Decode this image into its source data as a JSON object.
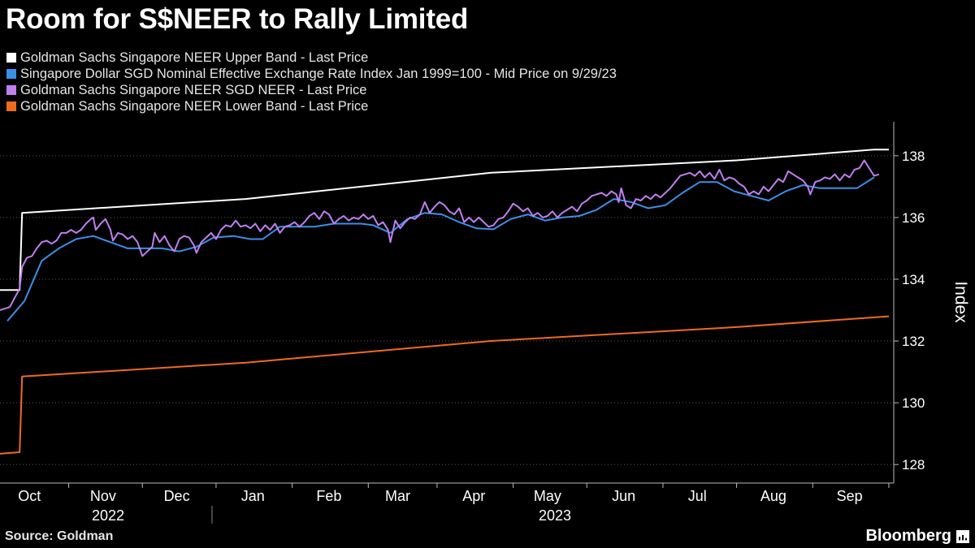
{
  "chart_data": {
    "type": "line",
    "title": "Room for S$NEER to Rally Limited",
    "ylabel": "Index",
    "ylim": [
      127.4,
      139.1
    ],
    "yticks": [
      128,
      130,
      132,
      134,
      136,
      138
    ],
    "xlim": [
      0,
      364
    ],
    "x_months": [
      {
        "label": "Oct",
        "x": 12
      },
      {
        "label": "Nov",
        "x": 42
      },
      {
        "label": "Dec",
        "x": 72
      },
      {
        "label": "Jan",
        "x": 103
      },
      {
        "label": "Feb",
        "x": 134
      },
      {
        "label": "Mar",
        "x": 162
      },
      {
        "label": "Apr",
        "x": 193
      },
      {
        "label": "May",
        "x": 223
      },
      {
        "label": "Jun",
        "x": 254
      },
      {
        "label": "Jul",
        "x": 284
      },
      {
        "label": "Aug",
        "x": 315
      },
      {
        "label": "Sep",
        "x": 346
      }
    ],
    "month_boundaries": [
      28,
      58,
      88,
      119,
      150,
      178,
      209,
      239,
      270,
      300,
      331,
      362
    ],
    "years": [
      {
        "label": "2022",
        "x_start": 0,
        "x_end": 88
      },
      {
        "label": "2023",
        "x_start": 88,
        "x_end": 364
      }
    ],
    "grid": "horizontal dotted",
    "series": [
      {
        "name": "Goldman Sachs Singapore NEER Upper Band - Last Price",
        "color": "#ffffff",
        "points": [
          [
            0,
            133.65
          ],
          [
            8,
            133.65
          ],
          [
            9,
            136.15
          ],
          [
            100,
            136.6
          ],
          [
            200,
            137.45
          ],
          [
            300,
            137.85
          ],
          [
            356,
            138.2
          ],
          [
            362,
            138.2
          ]
        ]
      },
      {
        "name": "Singapore Dollar SGD Nominal Effective Exchange Rate Index Jan 1999=100 - Mid Price on 9/29/23",
        "color": "#3b8fe8",
        "points": [
          [
            3,
            132.65
          ],
          [
            10,
            133.3
          ],
          [
            17,
            134.6
          ],
          [
            24,
            135.0
          ],
          [
            31,
            135.3
          ],
          [
            38,
            135.4
          ],
          [
            45,
            135.2
          ],
          [
            52,
            135.0
          ],
          [
            59,
            135.0
          ],
          [
            66,
            135.0
          ],
          [
            73,
            134.9
          ],
          [
            80,
            135.05
          ],
          [
            87,
            135.35
          ],
          [
            95,
            135.4
          ],
          [
            102,
            135.3
          ],
          [
            107,
            135.3
          ],
          [
            114,
            135.7
          ],
          [
            128,
            135.7
          ],
          [
            136,
            135.8
          ],
          [
            147,
            135.8
          ],
          [
            152,
            135.75
          ],
          [
            159,
            135.5
          ],
          [
            166,
            135.95
          ],
          [
            173,
            136.15
          ],
          [
            180,
            136.1
          ],
          [
            187,
            135.85
          ],
          [
            194,
            135.65
          ],
          [
            201,
            135.62
          ],
          [
            208,
            135.95
          ],
          [
            215,
            136.1
          ],
          [
            222,
            135.9
          ],
          [
            229,
            136.0
          ],
          [
            236,
            136.05
          ],
          [
            243,
            136.25
          ],
          [
            250,
            136.6
          ],
          [
            257,
            136.5
          ],
          [
            264,
            136.3
          ],
          [
            271,
            136.4
          ],
          [
            278,
            136.8
          ],
          [
            285,
            137.15
          ],
          [
            292,
            137.15
          ],
          [
            299,
            136.85
          ],
          [
            306,
            136.7
          ],
          [
            313,
            136.55
          ],
          [
            320,
            136.85
          ],
          [
            327,
            137.05
          ],
          [
            334,
            136.95
          ],
          [
            349,
            136.95
          ],
          [
            356,
            137.3
          ]
        ]
      },
      {
        "name": "Goldman Sachs Singapore NEER SGD NEER - Last Price",
        "color": "#c07ff0",
        "points": [
          [
            0,
            133.0
          ],
          [
            4,
            133.1
          ],
          [
            6,
            133.4
          ],
          [
            8,
            133.7
          ],
          [
            9,
            134.4
          ],
          [
            11,
            134.7
          ],
          [
            13,
            134.75
          ],
          [
            15,
            135.0
          ],
          [
            17,
            135.2
          ],
          [
            19,
            135.25
          ],
          [
            21,
            135.15
          ],
          [
            23,
            135.25
          ],
          [
            25,
            135.5
          ],
          [
            27,
            135.5
          ],
          [
            29,
            135.6
          ],
          [
            31,
            135.5
          ],
          [
            33,
            135.6
          ],
          [
            35,
            135.8
          ],
          [
            37,
            135.95
          ],
          [
            38,
            136.0
          ],
          [
            39,
            135.6
          ],
          [
            41,
            135.8
          ],
          [
            43,
            135.95
          ],
          [
            45,
            135.6
          ],
          [
            46,
            135.25
          ],
          [
            48,
            135.5
          ],
          [
            50,
            135.45
          ],
          [
            52,
            135.3
          ],
          [
            54,
            135.4
          ],
          [
            56,
            135.2
          ],
          [
            58,
            134.75
          ],
          [
            60,
            134.9
          ],
          [
            62,
            135.05
          ],
          [
            63,
            135.5
          ],
          [
            65,
            135.2
          ],
          [
            67,
            135.4
          ],
          [
            69,
            135.1
          ],
          [
            71,
            134.9
          ],
          [
            73,
            135.3
          ],
          [
            75,
            135.4
          ],
          [
            77,
            135.35
          ],
          [
            79,
            135.1
          ],
          [
            80,
            134.85
          ],
          [
            82,
            135.2
          ],
          [
            84,
            135.35
          ],
          [
            86,
            135.5
          ],
          [
            88,
            135.3
          ],
          [
            90,
            135.6
          ],
          [
            92,
            135.75
          ],
          [
            94,
            135.7
          ],
          [
            96,
            135.9
          ],
          [
            98,
            135.7
          ],
          [
            100,
            135.75
          ],
          [
            102,
            135.65
          ],
          [
            104,
            135.8
          ],
          [
            106,
            135.55
          ],
          [
            108,
            135.75
          ],
          [
            110,
            135.6
          ],
          [
            112,
            135.8
          ],
          [
            114,
            135.5
          ],
          [
            116,
            135.7
          ],
          [
            118,
            135.75
          ],
          [
            120,
            135.85
          ],
          [
            122,
            135.7
          ],
          [
            124,
            135.85
          ],
          [
            126,
            136.05
          ],
          [
            128,
            136.15
          ],
          [
            130,
            135.95
          ],
          [
            132,
            136.2
          ],
          [
            134,
            136.1
          ],
          [
            136,
            135.8
          ],
          [
            138,
            135.95
          ],
          [
            140,
            136.05
          ],
          [
            142,
            135.9
          ],
          [
            144,
            136.0
          ],
          [
            146,
            135.95
          ],
          [
            148,
            136.1
          ],
          [
            150,
            135.95
          ],
          [
            152,
            136.05
          ],
          [
            154,
            135.75
          ],
          [
            156,
            135.85
          ],
          [
            158,
            135.6
          ],
          [
            159,
            135.2
          ],
          [
            161,
            135.9
          ],
          [
            163,
            135.65
          ],
          [
            165,
            135.85
          ],
          [
            167,
            136.0
          ],
          [
            169,
            135.95
          ],
          [
            171,
            136.1
          ],
          [
            173,
            136.5
          ],
          [
            175,
            136.15
          ],
          [
            177,
            136.35
          ],
          [
            179,
            136.5
          ],
          [
            181,
            136.4
          ],
          [
            183,
            136.2
          ],
          [
            185,
            136.1
          ],
          [
            187,
            136.3
          ],
          [
            189,
            135.85
          ],
          [
            191,
            136.0
          ],
          [
            193,
            135.85
          ],
          [
            195,
            136.0
          ],
          [
            197,
            135.85
          ],
          [
            199,
            135.7
          ],
          [
            201,
            135.75
          ],
          [
            203,
            135.95
          ],
          [
            205,
            136.0
          ],
          [
            207,
            136.2
          ],
          [
            209,
            136.45
          ],
          [
            211,
            136.35
          ],
          [
            213,
            136.2
          ],
          [
            215,
            136.3
          ],
          [
            217,
            136.05
          ],
          [
            219,
            136.15
          ],
          [
            221,
            136.0
          ],
          [
            223,
            136.05
          ],
          [
            225,
            136.2
          ],
          [
            227,
            136.0
          ],
          [
            229,
            136.15
          ],
          [
            231,
            136.25
          ],
          [
            233,
            136.35
          ],
          [
            235,
            136.2
          ],
          [
            237,
            136.45
          ],
          [
            239,
            136.55
          ],
          [
            241,
            136.7
          ],
          [
            243,
            136.75
          ],
          [
            245,
            136.8
          ],
          [
            247,
            136.7
          ],
          [
            249,
            136.85
          ],
          [
            251,
            136.75
          ],
          [
            252,
            136.5
          ],
          [
            253,
            136.95
          ],
          [
            255,
            136.4
          ],
          [
            257,
            136.3
          ],
          [
            259,
            136.6
          ],
          [
            261,
            136.55
          ],
          [
            263,
            136.7
          ],
          [
            265,
            136.6
          ],
          [
            267,
            136.75
          ],
          [
            269,
            136.65
          ],
          [
            271,
            136.8
          ],
          [
            273,
            136.95
          ],
          [
            275,
            137.15
          ],
          [
            277,
            137.35
          ],
          [
            279,
            137.4
          ],
          [
            281,
            137.45
          ],
          [
            283,
            137.35
          ],
          [
            285,
            137.5
          ],
          [
            287,
            137.3
          ],
          [
            289,
            137.45
          ],
          [
            291,
            137.25
          ],
          [
            293,
            137.55
          ],
          [
            295,
            137.2
          ],
          [
            297,
            137.3
          ],
          [
            299,
            137.25
          ],
          [
            301,
            137.1
          ],
          [
            303,
            137.0
          ],
          [
            305,
            136.75
          ],
          [
            307,
            136.85
          ],
          [
            309,
            136.75
          ],
          [
            311,
            137.0
          ],
          [
            313,
            136.85
          ],
          [
            315,
            137.05
          ],
          [
            317,
            137.25
          ],
          [
            319,
            137.15
          ],
          [
            321,
            137.5
          ],
          [
            323,
            137.4
          ],
          [
            325,
            137.3
          ],
          [
            327,
            137.2
          ],
          [
            329,
            137.0
          ],
          [
            330,
            136.75
          ],
          [
            332,
            137.15
          ],
          [
            334,
            137.2
          ],
          [
            336,
            137.3
          ],
          [
            338,
            137.25
          ],
          [
            340,
            137.4
          ],
          [
            342,
            137.2
          ],
          [
            344,
            137.4
          ],
          [
            346,
            137.3
          ],
          [
            348,
            137.55
          ],
          [
            350,
            137.6
          ],
          [
            352,
            137.85
          ],
          [
            354,
            137.6
          ],
          [
            356,
            137.35
          ],
          [
            358,
            137.4
          ]
        ]
      },
      {
        "name": "Goldman Sachs Singapore NEER Lower Band - Last Price",
        "color": "#f06a1e",
        "points": [
          [
            0,
            128.35
          ],
          [
            8,
            128.4
          ],
          [
            9,
            130.85
          ],
          [
            100,
            131.3
          ],
          [
            200,
            132.0
          ],
          [
            300,
            132.45
          ],
          [
            362,
            132.8
          ]
        ]
      }
    ]
  },
  "source": "Source: Goldman",
  "brand": "Bloomberg"
}
